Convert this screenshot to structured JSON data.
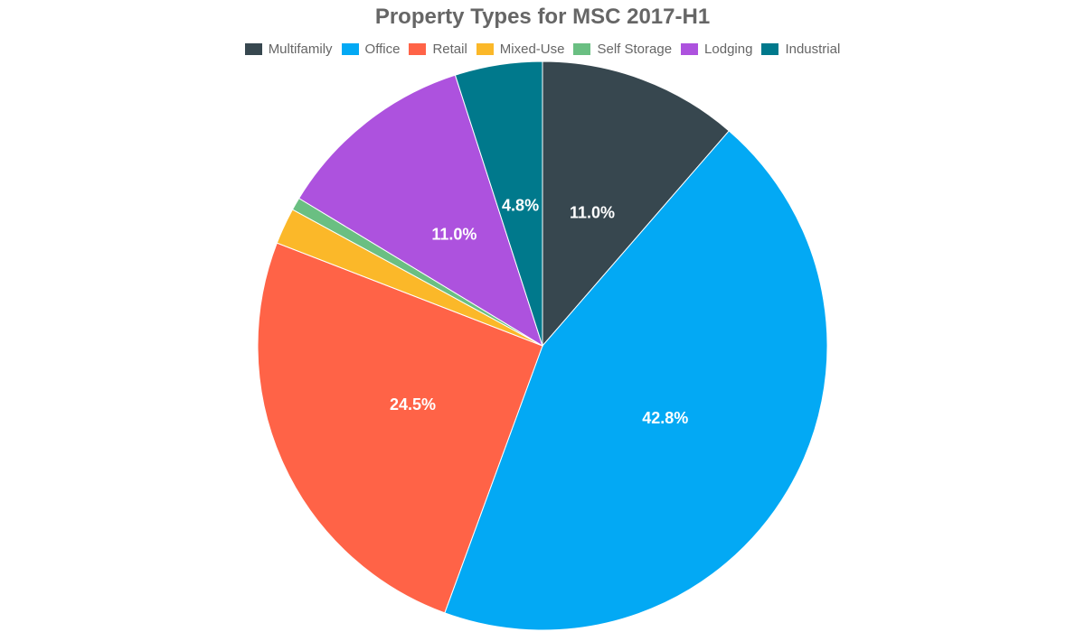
{
  "chart_data": {
    "type": "pie",
    "title": "Property Types for MSC 2017-H1",
    "legend_position": "top",
    "categories": [
      "Multifamily",
      "Office",
      "Retail",
      "Mixed-Use",
      "Self Storage",
      "Lodging",
      "Industrial"
    ],
    "values": [
      11.0,
      42.8,
      24.5,
      2.0,
      0.7,
      11.0,
      4.8
    ],
    "data_labels": [
      "11.0%",
      "42.8%",
      "24.5%",
      "",
      "",
      "11.0%",
      "4.8%"
    ],
    "colors": [
      "#37474f",
      "#03a9f4",
      "#ff6347",
      "#fbb829",
      "#6abf82",
      "#ad52de",
      "#00798c"
    ]
  }
}
